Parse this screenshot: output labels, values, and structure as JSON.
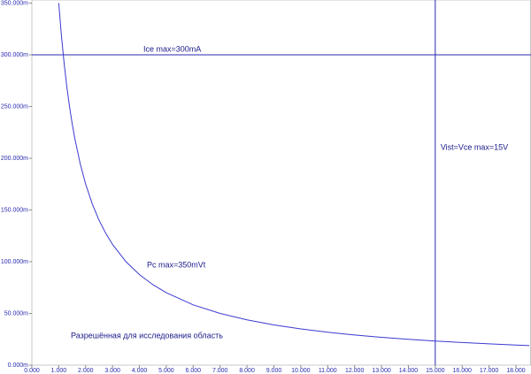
{
  "chart_data": {
    "type": "line",
    "x": [
      1.0,
      1.1,
      1.2,
      1.3,
      1.4,
      1.5,
      1.6,
      1.8,
      2,
      2.25,
      2.5,
      2.75,
      3,
      3.5,
      4,
      4.5,
      5,
      6,
      7,
      8,
      9,
      10,
      11,
      12,
      13,
      14,
      15,
      16,
      17,
      18,
      18.5
    ],
    "series": [
      {
        "color": "#3a3ad0",
        "values": [
          350,
          318.2,
          291.7,
          269.2,
          250,
          233.3,
          218.8,
          194.4,
          175,
          155.6,
          140,
          127.3,
          116.7,
          100,
          87.5,
          77.8,
          70,
          58.3,
          50,
          43.8,
          38.9,
          35,
          31.8,
          29.2,
          26.9,
          25,
          23.3,
          21.9,
          20.6,
          19.4,
          18.9
        ]
      }
    ],
    "xlim": [
      0,
      18.56
    ],
    "ylim": [
      0,
      353
    ],
    "xticks": [
      {
        "value": 0,
        "label": "0.000"
      },
      {
        "value": 1,
        "label": "1.000"
      },
      {
        "value": 2,
        "label": "2.000"
      },
      {
        "value": 3,
        "label": "3.000"
      },
      {
        "value": 4,
        "label": "4.000"
      },
      {
        "value": 5,
        "label": "5.000"
      },
      {
        "value": 6,
        "label": "6.000"
      },
      {
        "value": 7,
        "label": "7.000"
      },
      {
        "value": 8,
        "label": "8.000"
      },
      {
        "value": 9,
        "label": "9.000"
      },
      {
        "value": 10,
        "label": "10.000"
      },
      {
        "value": 11,
        "label": "11.000"
      },
      {
        "value": 12,
        "label": "12.000"
      },
      {
        "value": 13,
        "label": "13.000"
      },
      {
        "value": 14,
        "label": "14.000"
      },
      {
        "value": 15,
        "label": "15.000"
      },
      {
        "value": 16,
        "label": "16.000"
      },
      {
        "value": 17,
        "label": "17.000"
      },
      {
        "value": 18,
        "label": "18.000"
      }
    ],
    "yticks": [
      {
        "value": 0,
        "label": "0.000m"
      },
      {
        "value": 50,
        "label": "50.000m"
      },
      {
        "value": 100,
        "label": "100.000m"
      },
      {
        "value": 150,
        "label": "150.000m"
      },
      {
        "value": 200,
        "label": "200.000m"
      },
      {
        "value": 250,
        "label": "250.000m"
      },
      {
        "value": 300,
        "label": "300.000m"
      },
      {
        "value": 350,
        "label": "350.000m"
      }
    ],
    "hlines": [
      {
        "value": 300,
        "label": "Ice max=300mA"
      }
    ],
    "vlines": [
      {
        "value": 15,
        "label": "Vist=Vce max=15V"
      }
    ],
    "annotations": [
      "Pc max=350mVt",
      "Разрешённая для исследования область"
    ]
  }
}
